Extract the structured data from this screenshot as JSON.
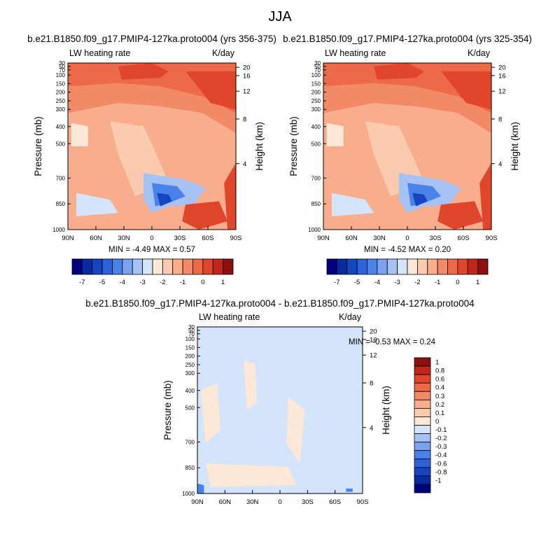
{
  "figure_title": "JJA",
  "chart_data": [
    {
      "type": "heatmap",
      "title": "b.e21.B1850.f09_g17.PMIP4-127ka.proto004 (yrs 356-375)",
      "left_label": "LW heating rate",
      "right_label": "K/day",
      "xlabel": "",
      "ylabel": "Pressure (mb)",
      "ylabel_right": "Height (km)",
      "x_ticks": [
        "90N",
        "60N",
        "30N",
        "0",
        "30S",
        "60S",
        "90S"
      ],
      "pressure_ticks": [
        "30",
        "50",
        "70",
        "100",
        "150",
        "200",
        "250",
        "300",
        "400",
        "500",
        "700",
        "850",
        "1000"
      ],
      "height_ticks": [
        "20",
        "16",
        "12",
        "8",
        "4"
      ],
      "stats": "MIN =  -4.49   MAX =   0.57",
      "min": -4.49,
      "max": 0.57,
      "colorbar": {
        "orientation": "horizontal",
        "labels": [
          "-7",
          "-5",
          "-4",
          "-3",
          "-2",
          "-1",
          "0",
          "1"
        ],
        "colors": [
          "#00007f",
          "#0a2ba0",
          "#1745c2",
          "#2e63dc",
          "#4a82ea",
          "#7ba2f0",
          "#a6c2f5",
          "#d4e5fb",
          "#fde8d8",
          "#fbcbb0",
          "#f8ad8c",
          "#f28a68",
          "#ec6a48",
          "#e0462c",
          "#c0271a",
          "#8f0f0f"
        ]
      }
    },
    {
      "type": "heatmap",
      "title": "b.e21.B1850.f09_g17.PMIP4-127ka.proto004 (yrs 325-354)",
      "left_label": "LW heating rate",
      "right_label": "K/day",
      "xlabel": "",
      "ylabel": "Pressure (mb)",
      "ylabel_right": "Height (km)",
      "x_ticks": [
        "90N",
        "60N",
        "30N",
        "0",
        "30S",
        "60S",
        "90S"
      ],
      "pressure_ticks": [
        "30",
        "50",
        "70",
        "100",
        "150",
        "200",
        "250",
        "300",
        "400",
        "500",
        "700",
        "850",
        "1000"
      ],
      "height_ticks": [
        "20",
        "16",
        "12",
        "8",
        "4"
      ],
      "stats": "MIN =  -4.52   MAX =   0.20",
      "min": -4.52,
      "max": 0.2,
      "colorbar": {
        "orientation": "horizontal",
        "labels": [
          "-7",
          "-5",
          "-4",
          "-3",
          "-2",
          "-1",
          "0",
          "1"
        ],
        "colors": [
          "#00007f",
          "#0a2ba0",
          "#1745c2",
          "#2e63dc",
          "#4a82ea",
          "#7ba2f0",
          "#a6c2f5",
          "#d4e5fb",
          "#fde8d8",
          "#fbcbb0",
          "#f8ad8c",
          "#f28a68",
          "#ec6a48",
          "#e0462c",
          "#c0271a",
          "#8f0f0f"
        ]
      }
    },
    {
      "type": "heatmap",
      "title": "b.e21.B1850.f09_g17.PMIP4-127ka.proto004 - b.e21.B1850.f09_g17.PMIP4-127ka.proto004",
      "left_label": "LW heating rate",
      "right_label": "K/day",
      "xlabel": "",
      "ylabel": "Pressure (mb)",
      "ylabel_right": "Height (km)",
      "x_ticks": [
        "90N",
        "60N",
        "30N",
        "0",
        "30S",
        "60S",
        "90S"
      ],
      "pressure_ticks": [
        "30",
        "50",
        "70",
        "100",
        "150",
        "200",
        "250",
        "300",
        "400",
        "500",
        "700",
        "850",
        "1000"
      ],
      "height_ticks": [
        "20",
        "16",
        "12",
        "8",
        "4"
      ],
      "stats": "MIN =  -0.53   MAX =   0.24",
      "min": -0.53,
      "max": 0.24,
      "colorbar": {
        "orientation": "vertical",
        "labels": [
          "1",
          "0.8",
          "0.6",
          "0.4",
          "0.3",
          "0.2",
          "0.1",
          "0",
          "-0.1",
          "-0.2",
          "-0.3",
          "-0.4",
          "-0.6",
          "-0.8",
          "-1"
        ],
        "colors": [
          "#8f0f0f",
          "#c0271a",
          "#e0462c",
          "#ec6a48",
          "#f28a68",
          "#f8ad8c",
          "#fbcbb0",
          "#fde8d8",
          "#d4e5fb",
          "#a6c2f5",
          "#7ba2f0",
          "#4a82ea",
          "#2e63dc",
          "#1745c2",
          "#0a2ba0",
          "#00007f"
        ]
      }
    }
  ]
}
